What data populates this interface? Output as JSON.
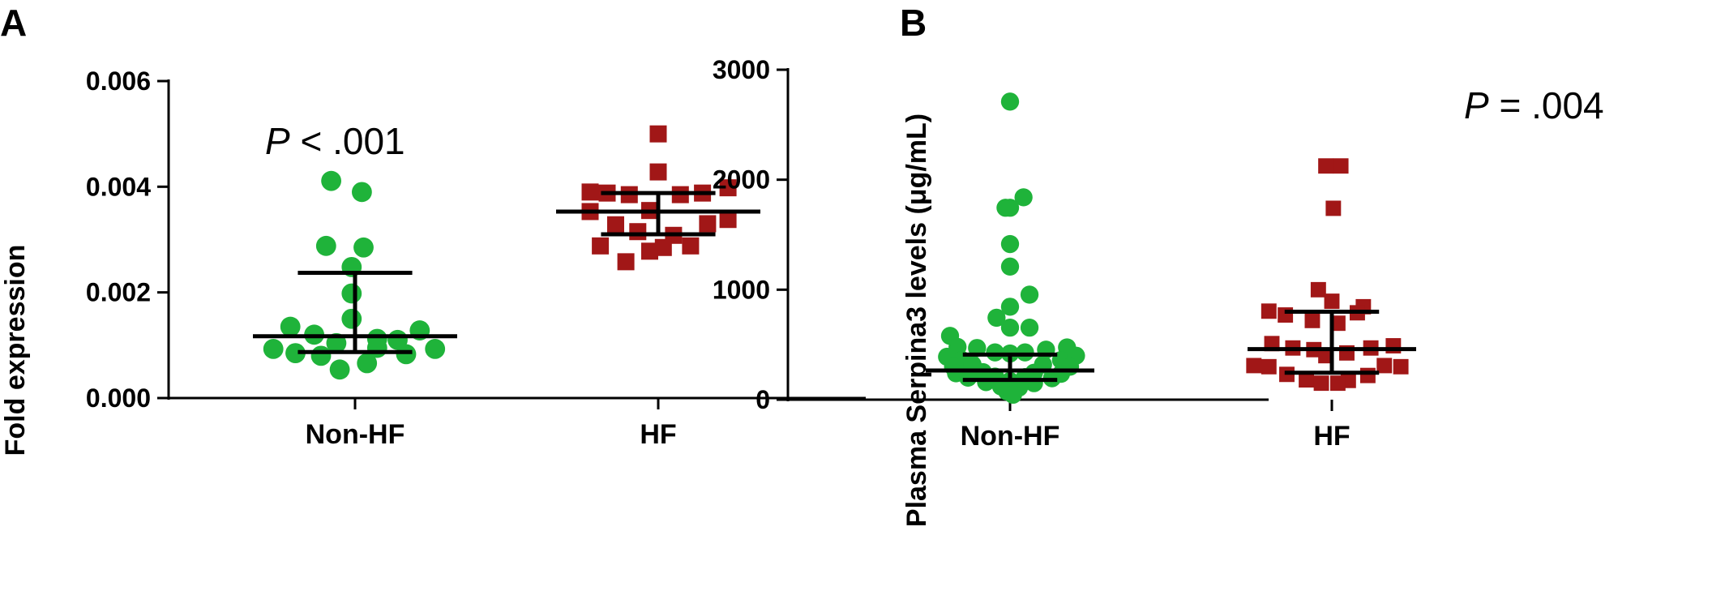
{
  "chart_data": [
    {
      "panel": "A",
      "type": "scatter",
      "ylabel": "Fold expression",
      "ylim": [
        0,
        0.006
      ],
      "yticks": [
        "0.000",
        "0.002",
        "0.004",
        "0.006"
      ],
      "ytick_values": [
        0,
        0.002,
        0.004,
        0.006
      ],
      "categories": [
        "Non-HF",
        "HF"
      ],
      "annotation": {
        "italic": "P",
        "rest": " < .001"
      },
      "series": [
        {
          "category": "Non-HF",
          "marker": "circle",
          "color": "#1fb33a",
          "median": 0.00117,
          "q1": 0.00087,
          "q3": 0.00237,
          "points": [
            {
              "offset": -0.14,
              "value": 0.00411
            },
            {
              "offset": 0.04,
              "value": 0.0039
            },
            {
              "offset": -0.17,
              "value": 0.00288
            },
            {
              "offset": 0.05,
              "value": 0.00285
            },
            {
              "offset": -0.02,
              "value": 0.00248
            },
            {
              "offset": -0.02,
              "value": 0.00198
            },
            {
              "offset": -0.02,
              "value": 0.0015
            },
            {
              "offset": -0.38,
              "value": 0.00135
            },
            {
              "offset": 0.38,
              "value": 0.00128
            },
            {
              "offset": -0.24,
              "value": 0.0012
            },
            {
              "offset": 0.13,
              "value": 0.00112
            },
            {
              "offset": 0.25,
              "value": 0.0011
            },
            {
              "offset": -0.48,
              "value": 0.00093
            },
            {
              "offset": 0.47,
              "value": 0.00093
            },
            {
              "offset": -0.11,
              "value": 0.00104
            },
            {
              "offset": 0.13,
              "value": 0.00095
            },
            {
              "offset": -0.35,
              "value": 0.00085
            },
            {
              "offset": 0.3,
              "value": 0.00083
            },
            {
              "offset": -0.2,
              "value": 0.0008
            },
            {
              "offset": 0.07,
              "value": 0.00066
            },
            {
              "offset": -0.09,
              "value": 0.00054
            }
          ]
        },
        {
          "category": "HF",
          "marker": "square",
          "color": "#a11717",
          "median": 0.00353,
          "q1": 0.0031,
          "q3": 0.00388,
          "points": [
            {
              "offset": 0.0,
              "value": 0.005
            },
            {
              "offset": 0.0,
              "value": 0.00428
            },
            {
              "offset": 0.41,
              "value": 0.00398
            },
            {
              "offset": -0.4,
              "value": 0.0039
            },
            {
              "offset": -0.3,
              "value": 0.00388
            },
            {
              "offset": -0.17,
              "value": 0.00385
            },
            {
              "offset": 0.13,
              "value": 0.00385
            },
            {
              "offset": 0.26,
              "value": 0.00388
            },
            {
              "offset": -0.4,
              "value": 0.00353
            },
            {
              "offset": -0.05,
              "value": 0.00355
            },
            {
              "offset": 0.29,
              "value": 0.0033
            },
            {
              "offset": 0.41,
              "value": 0.00338
            },
            {
              "offset": -0.25,
              "value": 0.00328
            },
            {
              "offset": -0.12,
              "value": 0.00315
            },
            {
              "offset": 0.09,
              "value": 0.00308
            },
            {
              "offset": -0.34,
              "value": 0.00288
            },
            {
              "offset": 0.03,
              "value": 0.00285
            },
            {
              "offset": 0.19,
              "value": 0.00288
            },
            {
              "offset": -0.05,
              "value": 0.00278
            },
            {
              "offset": -0.19,
              "value": 0.00258
            }
          ]
        }
      ]
    },
    {
      "panel": "B",
      "type": "scatter",
      "ylabel": "Plasma Serpina3 levels (μg/mL)",
      "ylim": [
        0,
        3000
      ],
      "yticks": [
        "0",
        "1000",
        "2000",
        "3000"
      ],
      "ytick_values": [
        0,
        1000,
        2000,
        3000
      ],
      "categories": [
        "Non-HF",
        "HF"
      ],
      "annotation": {
        "italic": "P",
        "rest": " = .004"
      },
      "series": [
        {
          "category": "Non-HF",
          "marker": "circle",
          "color": "#1fb33a",
          "median": 265,
          "q1": 180,
          "q3": 410,
          "points": [
            {
              "offset": 0.0,
              "value": 2710
            },
            {
              "offset": 0.09,
              "value": 1840
            },
            {
              "offset": -0.03,
              "value": 1745
            },
            {
              "offset": 0.0,
              "value": 1745
            },
            {
              "offset": 0.0,
              "value": 1415
            },
            {
              "offset": 0.0,
              "value": 1210
            },
            {
              "offset": 0.13,
              "value": 955
            },
            {
              "offset": 0.0,
              "value": 845
            },
            {
              "offset": -0.09,
              "value": 745
            },
            {
              "offset": 0.0,
              "value": 655
            },
            {
              "offset": 0.13,
              "value": 655
            },
            {
              "offset": -0.4,
              "value": 580
            },
            {
              "offset": -0.35,
              "value": 480
            },
            {
              "offset": -0.22,
              "value": 470
            },
            {
              "offset": -0.1,
              "value": 430
            },
            {
              "offset": 0.0,
              "value": 420
            },
            {
              "offset": 0.1,
              "value": 430
            },
            {
              "offset": 0.24,
              "value": 455
            },
            {
              "offset": 0.38,
              "value": 475
            },
            {
              "offset": -0.42,
              "value": 390
            },
            {
              "offset": -0.32,
              "value": 360
            },
            {
              "offset": 0.34,
              "value": 360
            },
            {
              "offset": 0.44,
              "value": 400
            },
            {
              "offset": -0.38,
              "value": 300
            },
            {
              "offset": -0.25,
              "value": 320
            },
            {
              "offset": 0.22,
              "value": 320
            },
            {
              "offset": 0.4,
              "value": 300
            },
            {
              "offset": -0.36,
              "value": 240
            },
            {
              "offset": -0.18,
              "value": 250
            },
            {
              "offset": 0.16,
              "value": 245
            },
            {
              "offset": 0.34,
              "value": 235
            },
            {
              "offset": -0.28,
              "value": 200
            },
            {
              "offset": -0.1,
              "value": 210
            },
            {
              "offset": 0.1,
              "value": 205
            },
            {
              "offset": 0.28,
              "value": 195
            },
            {
              "offset": -0.16,
              "value": 160
            },
            {
              "offset": 0.0,
              "value": 170
            },
            {
              "offset": 0.16,
              "value": 150
            },
            {
              "offset": -0.06,
              "value": 120
            },
            {
              "offset": 0.06,
              "value": 110
            },
            {
              "offset": -0.02,
              "value": 75
            },
            {
              "offset": 0.02,
              "value": 45
            }
          ]
        },
        {
          "category": "HF",
          "marker": "square",
          "color": "#a11717",
          "median": 460,
          "q1": 245,
          "q3": 800,
          "points": [
            {
              "offset": -0.04,
              "value": 2125
            },
            {
              "offset": 0.06,
              "value": 2125
            },
            {
              "offset": 0.01,
              "value": 1740
            },
            {
              "offset": -0.09,
              "value": 1000
            },
            {
              "offset": 0.0,
              "value": 895
            },
            {
              "offset": 0.21,
              "value": 845
            },
            {
              "offset": -0.42,
              "value": 805
            },
            {
              "offset": -0.31,
              "value": 770
            },
            {
              "offset": 0.17,
              "value": 790
            },
            {
              "offset": -0.13,
              "value": 720
            },
            {
              "offset": 0.04,
              "value": 695
            },
            {
              "offset": -0.4,
              "value": 510
            },
            {
              "offset": 0.41,
              "value": 490
            },
            {
              "offset": -0.26,
              "value": 470
            },
            {
              "offset": 0.26,
              "value": 470
            },
            {
              "offset": -0.12,
              "value": 455
            },
            {
              "offset": 0.1,
              "value": 425
            },
            {
              "offset": -0.04,
              "value": 400
            },
            {
              "offset": -0.52,
              "value": 310
            },
            {
              "offset": -0.42,
              "value": 300
            },
            {
              "offset": 0.46,
              "value": 300
            },
            {
              "offset": 0.35,
              "value": 310
            },
            {
              "offset": -0.3,
              "value": 230
            },
            {
              "offset": 0.24,
              "value": 220
            },
            {
              "offset": -0.17,
              "value": 180
            },
            {
              "offset": 0.11,
              "value": 175
            },
            {
              "offset": -0.07,
              "value": 150
            },
            {
              "offset": 0.04,
              "value": 150
            }
          ]
        }
      ]
    }
  ]
}
